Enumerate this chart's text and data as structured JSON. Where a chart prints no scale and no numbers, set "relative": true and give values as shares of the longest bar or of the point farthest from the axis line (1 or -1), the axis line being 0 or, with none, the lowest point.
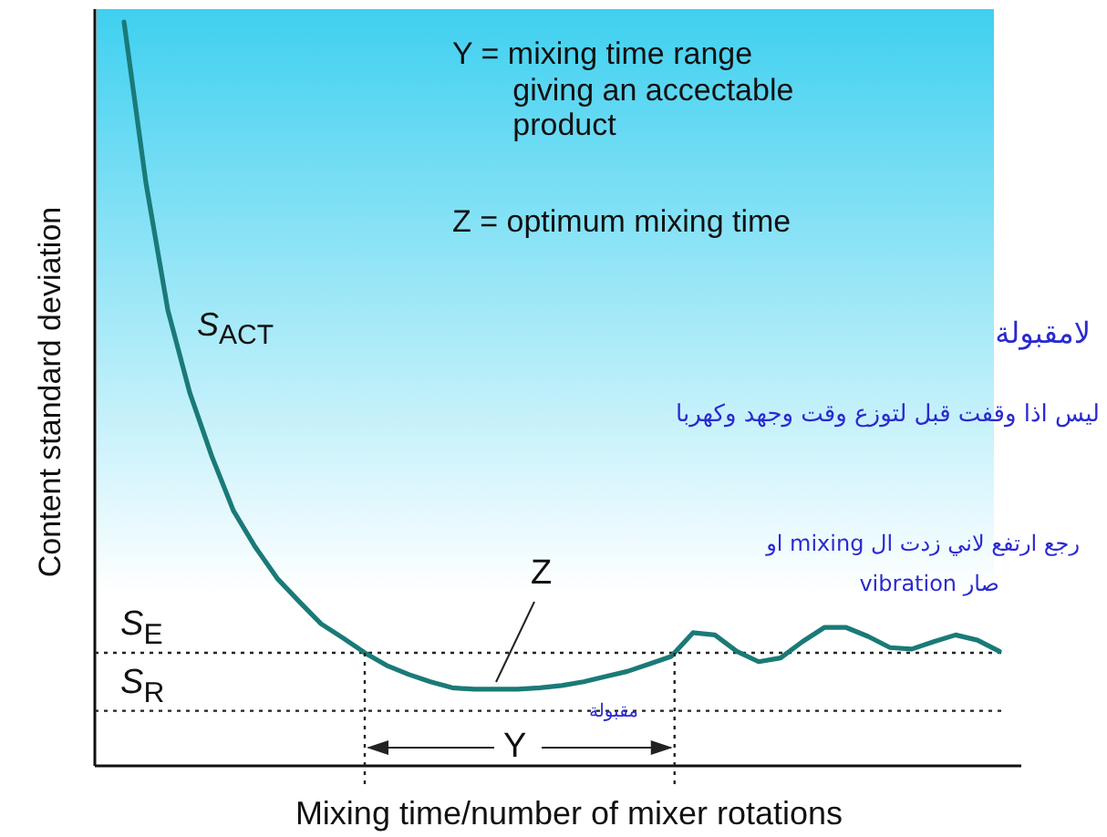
{
  "chart_data": {
    "type": "line",
    "relative": true,
    "xlabel": "Mixing time/number of mixer rotations",
    "ylabel": "Content standard deviation",
    "categories": [
      null,
      null,
      null,
      null,
      null,
      null,
      null,
      null,
      null,
      null,
      null,
      null,
      null,
      null,
      null,
      null,
      null,
      null,
      null,
      null,
      null,
      null,
      null,
      null,
      null,
      null,
      null,
      null,
      null,
      null,
      null,
      null,
      null,
      null,
      null,
      null,
      null,
      null,
      null,
      null,
      null
    ],
    "series": [
      {
        "color": "#1a7a78",
        "values": [
          1.0,
          0.784,
          0.613,
          0.502,
          0.417,
          0.343,
          0.294,
          0.252,
          0.221,
          0.191,
          0.172,
          0.152,
          0.135,
          0.123,
          0.113,
          0.105,
          0.103,
          0.103,
          0.103,
          0.105,
          0.108,
          0.113,
          0.12,
          0.127,
          0.137,
          0.147,
          0.179,
          0.176,
          0.154,
          0.14,
          0.145,
          0.167,
          0.186,
          0.186,
          0.174,
          0.159,
          0.157,
          0.167,
          0.176,
          0.169,
          0.154
        ]
      }
    ],
    "line_style": "solid",
    "ref_lines": [
      {
        "axis": "y",
        "value": 0.152,
        "label": "*S*$_{E}$",
        "line_style": "dotted"
      },
      {
        "axis": "y",
        "value": 0.074,
        "label": "*S*$_{R}$",
        "line_style": "dotted"
      }
    ],
    "annotations": [
      "Y = mixing time range giving an accectable product",
      "Z = optimum mixing time",
      "*S*$_{ACT}$",
      "Z",
      "Y",
      "لامقبولة",
      "ليس اذا وقفت قبل لتوزع وقت وجهد وكهربا",
      "رجع ارتفع لاني زدت ال mixing او",
      "صار vibration",
      "مقبولة"
    ]
  }
}
